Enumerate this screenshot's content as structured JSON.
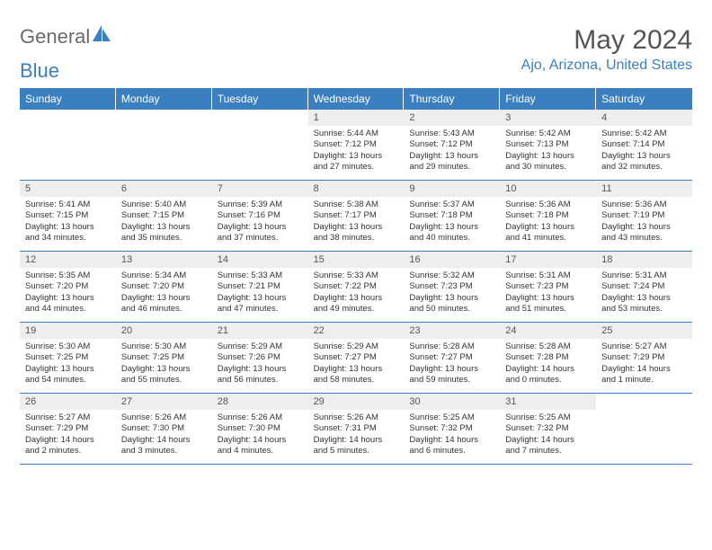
{
  "brand": {
    "part1": "General",
    "part2": "Blue"
  },
  "title": "May 2024",
  "location": "Ajo, Arizona, United States",
  "colors": {
    "accent": "#3a7fc0",
    "header_text": "#ffffff",
    "daynum_bg": "#eeeeee",
    "text": "#333333",
    "muted": "#555555",
    "logo_grey": "#6a6a6a"
  },
  "weekdays": [
    "Sunday",
    "Monday",
    "Tuesday",
    "Wednesday",
    "Thursday",
    "Friday",
    "Saturday"
  ],
  "weeks": [
    [
      {
        "n": "",
        "sunrise": "",
        "sunset": "",
        "daylight": ""
      },
      {
        "n": "",
        "sunrise": "",
        "sunset": "",
        "daylight": ""
      },
      {
        "n": "",
        "sunrise": "",
        "sunset": "",
        "daylight": ""
      },
      {
        "n": "1",
        "sunrise": "Sunrise: 5:44 AM",
        "sunset": "Sunset: 7:12 PM",
        "daylight": "Daylight: 13 hours and 27 minutes."
      },
      {
        "n": "2",
        "sunrise": "Sunrise: 5:43 AM",
        "sunset": "Sunset: 7:12 PM",
        "daylight": "Daylight: 13 hours and 29 minutes."
      },
      {
        "n": "3",
        "sunrise": "Sunrise: 5:42 AM",
        "sunset": "Sunset: 7:13 PM",
        "daylight": "Daylight: 13 hours and 30 minutes."
      },
      {
        "n": "4",
        "sunrise": "Sunrise: 5:42 AM",
        "sunset": "Sunset: 7:14 PM",
        "daylight": "Daylight: 13 hours and 32 minutes."
      }
    ],
    [
      {
        "n": "5",
        "sunrise": "Sunrise: 5:41 AM",
        "sunset": "Sunset: 7:15 PM",
        "daylight": "Daylight: 13 hours and 34 minutes."
      },
      {
        "n": "6",
        "sunrise": "Sunrise: 5:40 AM",
        "sunset": "Sunset: 7:15 PM",
        "daylight": "Daylight: 13 hours and 35 minutes."
      },
      {
        "n": "7",
        "sunrise": "Sunrise: 5:39 AM",
        "sunset": "Sunset: 7:16 PM",
        "daylight": "Daylight: 13 hours and 37 minutes."
      },
      {
        "n": "8",
        "sunrise": "Sunrise: 5:38 AM",
        "sunset": "Sunset: 7:17 PM",
        "daylight": "Daylight: 13 hours and 38 minutes."
      },
      {
        "n": "9",
        "sunrise": "Sunrise: 5:37 AM",
        "sunset": "Sunset: 7:18 PM",
        "daylight": "Daylight: 13 hours and 40 minutes."
      },
      {
        "n": "10",
        "sunrise": "Sunrise: 5:36 AM",
        "sunset": "Sunset: 7:18 PM",
        "daylight": "Daylight: 13 hours and 41 minutes."
      },
      {
        "n": "11",
        "sunrise": "Sunrise: 5:36 AM",
        "sunset": "Sunset: 7:19 PM",
        "daylight": "Daylight: 13 hours and 43 minutes."
      }
    ],
    [
      {
        "n": "12",
        "sunrise": "Sunrise: 5:35 AM",
        "sunset": "Sunset: 7:20 PM",
        "daylight": "Daylight: 13 hours and 44 minutes."
      },
      {
        "n": "13",
        "sunrise": "Sunrise: 5:34 AM",
        "sunset": "Sunset: 7:20 PM",
        "daylight": "Daylight: 13 hours and 46 minutes."
      },
      {
        "n": "14",
        "sunrise": "Sunrise: 5:33 AM",
        "sunset": "Sunset: 7:21 PM",
        "daylight": "Daylight: 13 hours and 47 minutes."
      },
      {
        "n": "15",
        "sunrise": "Sunrise: 5:33 AM",
        "sunset": "Sunset: 7:22 PM",
        "daylight": "Daylight: 13 hours and 49 minutes."
      },
      {
        "n": "16",
        "sunrise": "Sunrise: 5:32 AM",
        "sunset": "Sunset: 7:23 PM",
        "daylight": "Daylight: 13 hours and 50 minutes."
      },
      {
        "n": "17",
        "sunrise": "Sunrise: 5:31 AM",
        "sunset": "Sunset: 7:23 PM",
        "daylight": "Daylight: 13 hours and 51 minutes."
      },
      {
        "n": "18",
        "sunrise": "Sunrise: 5:31 AM",
        "sunset": "Sunset: 7:24 PM",
        "daylight": "Daylight: 13 hours and 53 minutes."
      }
    ],
    [
      {
        "n": "19",
        "sunrise": "Sunrise: 5:30 AM",
        "sunset": "Sunset: 7:25 PM",
        "daylight": "Daylight: 13 hours and 54 minutes."
      },
      {
        "n": "20",
        "sunrise": "Sunrise: 5:30 AM",
        "sunset": "Sunset: 7:25 PM",
        "daylight": "Daylight: 13 hours and 55 minutes."
      },
      {
        "n": "21",
        "sunrise": "Sunrise: 5:29 AM",
        "sunset": "Sunset: 7:26 PM",
        "daylight": "Daylight: 13 hours and 56 minutes."
      },
      {
        "n": "22",
        "sunrise": "Sunrise: 5:29 AM",
        "sunset": "Sunset: 7:27 PM",
        "daylight": "Daylight: 13 hours and 58 minutes."
      },
      {
        "n": "23",
        "sunrise": "Sunrise: 5:28 AM",
        "sunset": "Sunset: 7:27 PM",
        "daylight": "Daylight: 13 hours and 59 minutes."
      },
      {
        "n": "24",
        "sunrise": "Sunrise: 5:28 AM",
        "sunset": "Sunset: 7:28 PM",
        "daylight": "Daylight: 14 hours and 0 minutes."
      },
      {
        "n": "25",
        "sunrise": "Sunrise: 5:27 AM",
        "sunset": "Sunset: 7:29 PM",
        "daylight": "Daylight: 14 hours and 1 minute."
      }
    ],
    [
      {
        "n": "26",
        "sunrise": "Sunrise: 5:27 AM",
        "sunset": "Sunset: 7:29 PM",
        "daylight": "Daylight: 14 hours and 2 minutes."
      },
      {
        "n": "27",
        "sunrise": "Sunrise: 5:26 AM",
        "sunset": "Sunset: 7:30 PM",
        "daylight": "Daylight: 14 hours and 3 minutes."
      },
      {
        "n": "28",
        "sunrise": "Sunrise: 5:26 AM",
        "sunset": "Sunset: 7:30 PM",
        "daylight": "Daylight: 14 hours and 4 minutes."
      },
      {
        "n": "29",
        "sunrise": "Sunrise: 5:26 AM",
        "sunset": "Sunset: 7:31 PM",
        "daylight": "Daylight: 14 hours and 5 minutes."
      },
      {
        "n": "30",
        "sunrise": "Sunrise: 5:25 AM",
        "sunset": "Sunset: 7:32 PM",
        "daylight": "Daylight: 14 hours and 6 minutes."
      },
      {
        "n": "31",
        "sunrise": "Sunrise: 5:25 AM",
        "sunset": "Sunset: 7:32 PM",
        "daylight": "Daylight: 14 hours and 7 minutes."
      },
      {
        "n": "",
        "sunrise": "",
        "sunset": "",
        "daylight": ""
      }
    ]
  ]
}
